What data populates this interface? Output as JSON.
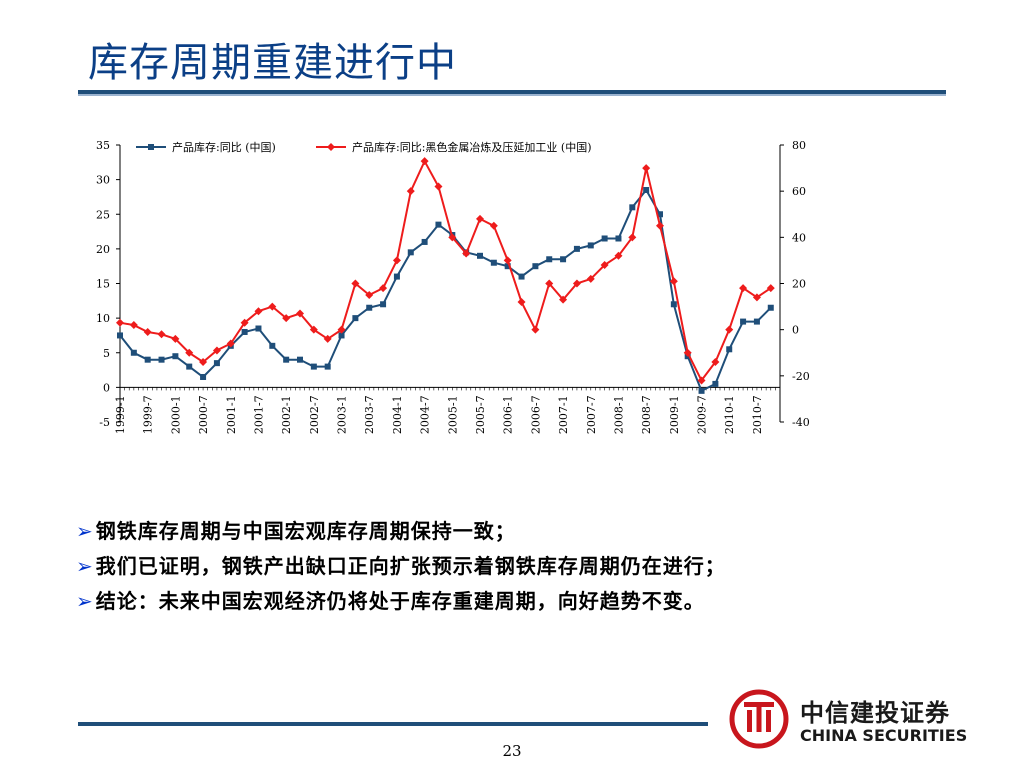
{
  "slide": {
    "title": "库存周期重建进行中",
    "page_number": "23"
  },
  "bullets": [
    "钢铁库存周期与中国宏观库存周期保持一致；",
    "我们已证明，钢铁产出缺口正向扩张预示着钢铁库存周期仍在进行；",
    "结论：未来中国宏观经济仍将处于库存重建周期，向好趋势不变。"
  ],
  "logo": {
    "name_cn": "中信建投证券",
    "name_en": "CHINA SECURITIES",
    "color": "#c8161d"
  },
  "chart_data": {
    "type": "line",
    "x_ticks": [
      "1999-1",
      "1999-7",
      "2000-1",
      "2000-7",
      "2001-1",
      "2001-7",
      "2002-1",
      "2002-7",
      "2003-1",
      "2003-7",
      "2004-1",
      "2004-7",
      "2005-1",
      "2005-7",
      "2006-1",
      "2006-7",
      "2007-1",
      "2007-7",
      "2008-1",
      "2008-7",
      "2009-1",
      "2009-7",
      "2010-1",
      "2010-7"
    ],
    "y_left": {
      "min": -5,
      "max": 35,
      "ticks": [
        -5,
        0,
        5,
        10,
        15,
        20,
        25,
        30,
        35
      ]
    },
    "y_right": {
      "min": -40,
      "max": 80,
      "ticks": [
        -40,
        -20,
        0,
        20,
        40,
        60,
        80
      ]
    },
    "series": [
      {
        "name": "产品库存:同比 (中国)",
        "axis": "left",
        "color": "#1f4e79",
        "marker": "square",
        "x": [
          "1999-1",
          "1999-4",
          "1999-7",
          "1999-10",
          "2000-1",
          "2000-4",
          "2000-7",
          "2000-10",
          "2001-1",
          "2001-4",
          "2001-7",
          "2001-10",
          "2002-1",
          "2002-4",
          "2002-7",
          "2002-10",
          "2003-1",
          "2003-4",
          "2003-7",
          "2003-10",
          "2004-1",
          "2004-4",
          "2004-7",
          "2004-10",
          "2005-1",
          "2005-4",
          "2005-7",
          "2005-10",
          "2006-1",
          "2006-4",
          "2006-7",
          "2006-10",
          "2007-1",
          "2007-4",
          "2007-7",
          "2007-10",
          "2008-1",
          "2008-4",
          "2008-7",
          "2008-10",
          "2009-1",
          "2009-4",
          "2009-7",
          "2009-10",
          "2010-1",
          "2010-4",
          "2010-7",
          "2010-10"
        ],
        "values": [
          7.5,
          5,
          4,
          4,
          4.5,
          3,
          1.5,
          3.5,
          6,
          8,
          8.5,
          6,
          4,
          4,
          3,
          3,
          7.5,
          10,
          11.5,
          12,
          16,
          19.5,
          21,
          23.5,
          22,
          19.5,
          19,
          18,
          17.5,
          16,
          17.5,
          18.5,
          18.5,
          20,
          20.5,
          21.5,
          21.5,
          26,
          28.5,
          25,
          12,
          4.5,
          -0.5,
          0.5,
          5.5,
          9.5,
          9.5,
          11.5
        ]
      },
      {
        "name": "产品库存:同比:黑色金属冶炼及压延加工业 (中国)",
        "axis": "right",
        "color": "#ee1c1c",
        "marker": "diamond",
        "x": [
          "1999-1",
          "1999-4",
          "1999-7",
          "1999-10",
          "2000-1",
          "2000-4",
          "2000-7",
          "2000-10",
          "2001-1",
          "2001-4",
          "2001-7",
          "2001-10",
          "2002-1",
          "2002-4",
          "2002-7",
          "2002-10",
          "2003-1",
          "2003-4",
          "2003-7",
          "2003-10",
          "2004-1",
          "2004-4",
          "2004-7",
          "2004-10",
          "2005-1",
          "2005-4",
          "2005-7",
          "2005-10",
          "2006-1",
          "2006-4",
          "2006-7",
          "2006-10",
          "2007-1",
          "2007-4",
          "2007-7",
          "2007-10",
          "2008-1",
          "2008-4",
          "2008-7",
          "2008-10",
          "2009-1",
          "2009-4",
          "2009-7",
          "2009-10",
          "2010-1",
          "2010-4",
          "2010-7",
          "2010-10"
        ],
        "values": [
          3,
          2,
          -1,
          -2,
          -4,
          -10,
          -14,
          -9,
          -6,
          3,
          8,
          10,
          5,
          7,
          0,
          -4,
          0,
          20,
          15,
          18,
          30,
          60,
          73,
          62,
          40,
          33,
          48,
          45,
          30,
          12,
          0,
          20,
          13,
          20,
          22,
          28,
          32,
          40,
          70,
          45,
          21,
          -10,
          -22,
          -14,
          0,
          18,
          14,
          18
        ]
      }
    ]
  }
}
